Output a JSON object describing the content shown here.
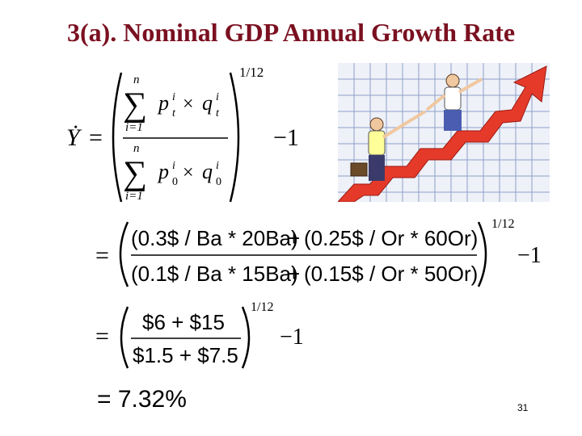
{
  "title": "3(a). Nominal GDP Annual Growth Rate",
  "slide_number": "31",
  "formula1": {
    "lhs": "Ẏ",
    "eq": "=",
    "sum": "∑",
    "n": "n",
    "i1": "i=1",
    "p": "p",
    "q": "q",
    "t": "t",
    "zero": "0",
    "i": "i",
    "times": "×",
    "exponent": "1/12",
    "minus_one": "−1"
  },
  "formula2": {
    "eq": "=",
    "numerator_a": "(0.3$ / Ba * 20Ba)",
    "plus": "+",
    "numerator_b": "(0.25$ / Or * 60Or)",
    "denominator_a": "(0.1$ / Ba * 15Ba)",
    "denominator_b": "(0.15$ / Or * 50Or)",
    "exponent": "1/12",
    "minus_one": "−1"
  },
  "formula3": {
    "eq": "=",
    "numerator": "$6 + $15",
    "denominator": "$1.5 + $7.5",
    "exponent": "1/12",
    "minus_one": "−1"
  },
  "result": "= 7.32%"
}
